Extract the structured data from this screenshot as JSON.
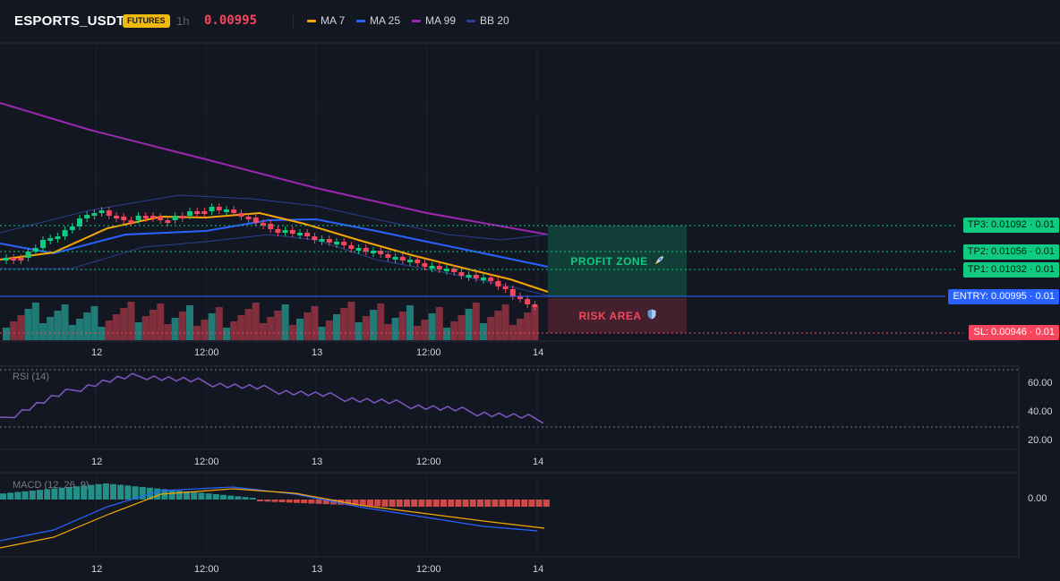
{
  "header": {
    "symbol": "ESPORTS_USDT",
    "badge": "FUTURES",
    "timeframe": "1h",
    "last_price": "0.00995"
  },
  "indicators": [
    {
      "label": "MA 7",
      "color": "#f7a600",
      "icon": "line-swatch-icon"
    },
    {
      "label": "MA 25",
      "color": "#2962ff",
      "icon": "line-swatch-icon"
    },
    {
      "label": "MA 99",
      "color": "#9c27b0",
      "icon": "line-swatch-icon"
    },
    {
      "label": "BB 20",
      "color": "#2b3f8f",
      "icon": "line-swatch-icon"
    }
  ],
  "zones": {
    "profit_label": "PROFIT ZONE",
    "profit_icon": "rocket-icon",
    "risk_label": "RISK AREA",
    "risk_icon": "shield-icon"
  },
  "price_labels": {
    "tp3": "TP3: 0.01092 · 0.01",
    "tp2": "TP2: 0.01056 · 0.01",
    "tp1": "TP1: 0.01032 · 0.01",
    "entry": "ENTRY: 0.00995 · 0.01",
    "sl": "SL: 0.00946 · 0.01"
  },
  "time_axis": [
    "12",
    "12:00",
    "13",
    "12:00",
    "14"
  ],
  "rsi": {
    "title": "RSI (14)",
    "ticks": [
      "60.00",
      "40.00",
      "20.00"
    ]
  },
  "macd": {
    "title": "MACD (12, 26, 9)",
    "ticks": [
      "0.00"
    ]
  },
  "colors": {
    "up": "#26a69a",
    "up_bright": "#0ecb81",
    "down": "#f6465d",
    "background": "#131722",
    "grid": "#1e2230",
    "rsi_line": "#7e57c2",
    "macd_line": "#2962ff",
    "signal_line": "#f7a600",
    "entry": "#2962ff",
    "sl": "#f6465d",
    "tp": "#0ecb81"
  }
}
